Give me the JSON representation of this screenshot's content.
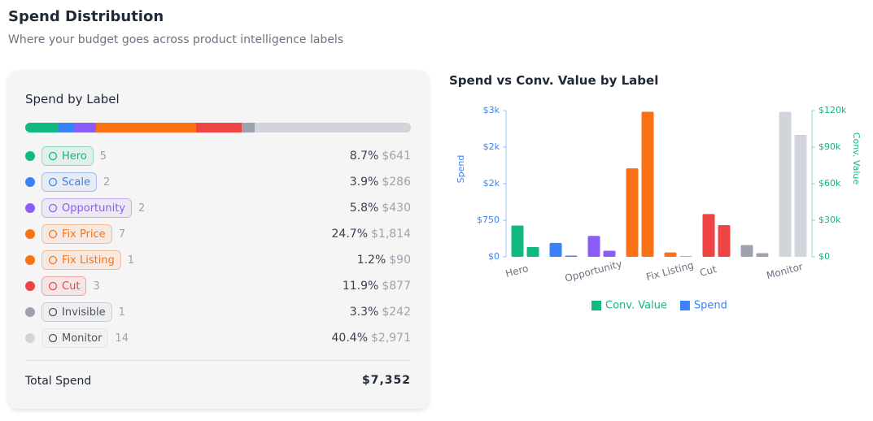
{
  "header": {
    "title": "Spend Distribution",
    "subtitle": "Where your budget goes across product intelligence labels"
  },
  "card": {
    "title": "Spend by Label",
    "rows": [
      {
        "label": "Hero",
        "count": 5,
        "share": 8.7,
        "share_label": "8.7%",
        "amount": "$641",
        "color": "#10b981"
      },
      {
        "label": "Scale",
        "count": 2,
        "share": 3.9,
        "share_label": "3.9%",
        "amount": "$286",
        "color": "#3b82f6"
      },
      {
        "label": "Opportunity",
        "count": 2,
        "share": 5.8,
        "share_label": "5.8%",
        "amount": "$430",
        "color": "#8b5cf6"
      },
      {
        "label": "Fix Price",
        "count": 7,
        "share": 24.7,
        "share_label": "24.7%",
        "amount": "$1,814",
        "color": "#f97316"
      },
      {
        "label": "Fix Listing",
        "count": 1,
        "share": 1.2,
        "share_label": "1.2%",
        "amount": "$90",
        "color": "#f97316"
      },
      {
        "label": "Cut",
        "count": 3,
        "share": 11.9,
        "share_label": "11.9%",
        "amount": "$877",
        "color": "#ef4444"
      },
      {
        "label": "Invisible",
        "count": 1,
        "share": 3.3,
        "share_label": "3.3%",
        "amount": "$242",
        "color": "#9ca3af"
      },
      {
        "label": "Monitor",
        "count": 14,
        "share": 40.4,
        "share_label": "40.4%",
        "amount": "$2,971",
        "color": "#d1d5db"
      }
    ],
    "total_label": "Total Spend",
    "total": "$7,352"
  },
  "chart_data": {
    "type": "bar",
    "title": "Spend vs Conv. Value by Label",
    "categories": [
      "Hero",
      null,
      "Opportunity",
      null,
      "Fix Listing",
      "Cut",
      null,
      "Monitor"
    ],
    "colors": [
      "#10b981",
      "#3b82f6",
      "#8b5cf6",
      "#f97316",
      "#f97316",
      "#ef4444",
      "#9ca3af",
      "#d1d5db"
    ],
    "y_label": "Spend",
    "y2_label": "Conv. Value",
    "series": [
      {
        "name": "Conv. Value",
        "color": "#10b981",
        "axis": "y2",
        "values": [
          8000,
          1000,
          5000,
          119000,
          500,
          26000,
          3000,
          100000
        ]
      },
      {
        "name": "Spend",
        "color": "#3b82f6",
        "axis": "y",
        "values": [
          641,
          286,
          430,
          1814,
          90,
          877,
          242,
          2971
        ]
      }
    ],
    "ylim": [
      0,
      3000
    ],
    "yticks": [
      {
        "value": 0,
        "label": "$0"
      },
      {
        "value": 750,
        "label": "$750"
      },
      {
        "value": 1500,
        "label": "$2k"
      },
      {
        "value": 2250,
        "label": "$2k"
      },
      {
        "value": 3000,
        "label": "$3k"
      }
    ],
    "y2lim": [
      0,
      120000
    ],
    "y2ticks": [
      {
        "value": 0,
        "label": "$0"
      },
      {
        "value": 30000,
        "label": "$30k"
      },
      {
        "value": 60000,
        "label": "$60k"
      },
      {
        "value": 90000,
        "label": "$90k"
      },
      {
        "value": 120000,
        "label": "$120k"
      }
    ]
  }
}
